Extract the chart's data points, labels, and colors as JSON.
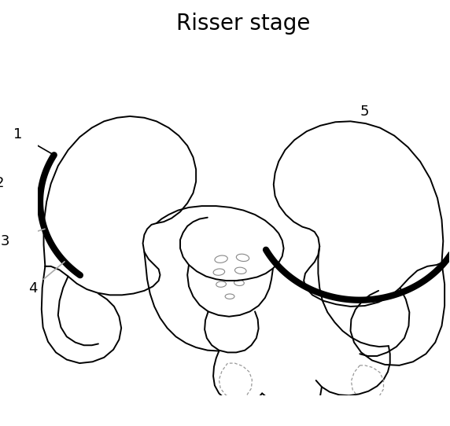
{
  "title": "Risser stage",
  "title_fontsize": 20,
  "background_color": "#ffffff",
  "line_color": "#000000",
  "thick_lw": 6,
  "thin_lw": 1.4,
  "label_fontsize": 13,
  "fig_w": 5.72,
  "fig_h": 5.42,
  "dpi": 100
}
